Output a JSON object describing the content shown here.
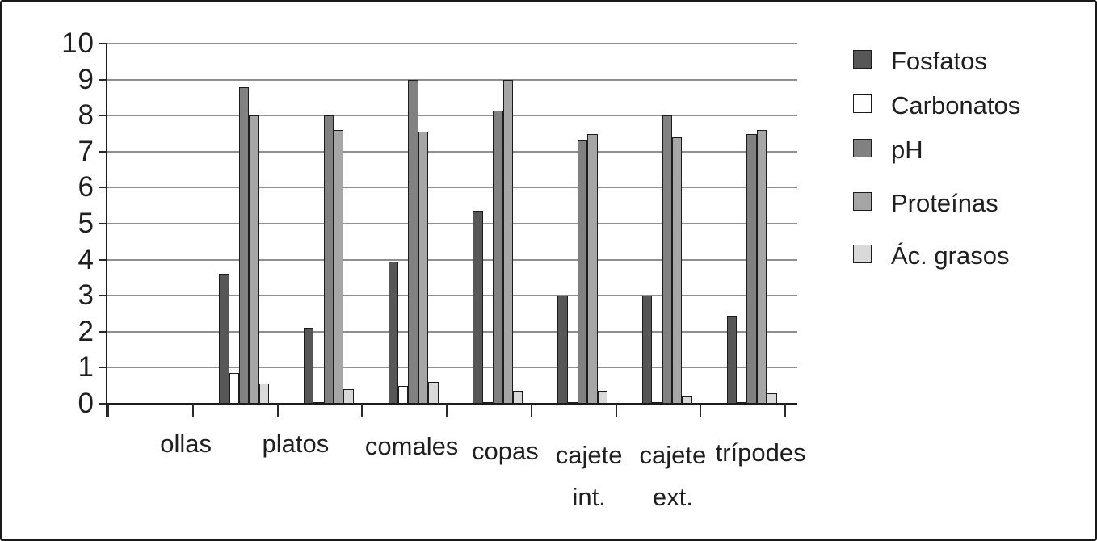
{
  "figure": {
    "background": "#ffffff",
    "border_color": "#1a1a1a",
    "gridline_color": "#8f8f8f",
    "text_color": "#1f1f1f"
  },
  "chart_data": {
    "type": "bar",
    "title": "",
    "xlabel": "",
    "ylabel": "",
    "categories": [
      "ollas",
      "platos",
      "comales",
      "copas",
      "cajete int.",
      "cajete ext.",
      "trípodes"
    ],
    "category_labels": [
      [
        "ollas"
      ],
      [
        "platos"
      ],
      [
        "comales"
      ],
      [
        "copas"
      ],
      [
        "cajete",
        "int."
      ],
      [
        "cajete",
        "ext."
      ],
      [
        "trípodes"
      ]
    ],
    "series": [
      {
        "name": "Fosfatos",
        "color": "#575757",
        "values": [
          3.6,
          2.1,
          3.95,
          5.35,
          3.0,
          3.0,
          2.45
        ]
      },
      {
        "name": "Carbonatos",
        "color": "#ffffff",
        "values": [
          0.85,
          0.05,
          0.5,
          0.05,
          0.05,
          0.05,
          0.05
        ]
      },
      {
        "name": "pH",
        "color": "#818181",
        "values": [
          8.8,
          8.0,
          9.0,
          8.15,
          7.3,
          8.0,
          7.5
        ]
      },
      {
        "name": "Proteínas",
        "color": "#a6a6a6",
        "values": [
          8.0,
          7.6,
          7.55,
          9.0,
          7.5,
          7.4,
          7.6
        ]
      },
      {
        "name": "Ác. grasos",
        "color": "#d9d9d9",
        "values": [
          0.55,
          0.4,
          0.6,
          0.35,
          0.35,
          0.2,
          0.3
        ]
      }
    ],
    "ylim": [
      0,
      10
    ],
    "ytick_interval": 1,
    "yticks": [
      "0",
      "1",
      "2",
      "3",
      "4",
      "5",
      "6",
      "7",
      "8",
      "9",
      "10"
    ],
    "grid": true,
    "legend_position": "right",
    "leading_empty_intervals": 1
  }
}
